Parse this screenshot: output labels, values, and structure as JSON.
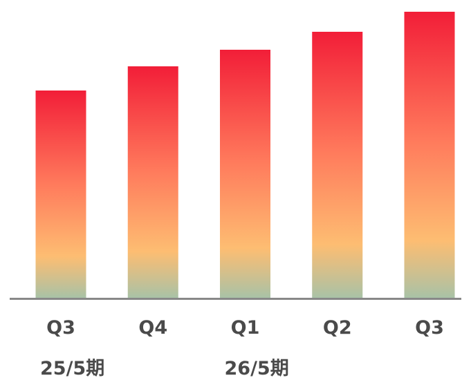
{
  "chart_data": {
    "type": "bar",
    "categories": [
      "Q3",
      "Q4",
      "Q1",
      "Q2",
      "Q3"
    ],
    "values": [
      300,
      335,
      359,
      385,
      414
    ],
    "ylim": [
      0,
      414
    ],
    "group_labels": [
      {
        "label": "25/5期",
        "start_index": 0
      },
      {
        "label": "26/5期",
        "start_index": 2
      }
    ],
    "grid": false,
    "legend": "none",
    "colors": {
      "bar_top": "#f21e38",
      "bar_middle": "#ff7a5c",
      "bar_lower": "#fdbd72",
      "bar_bottom": "#a9c2a6",
      "axis": "#888888",
      "text": "#4a4a4a"
    }
  }
}
